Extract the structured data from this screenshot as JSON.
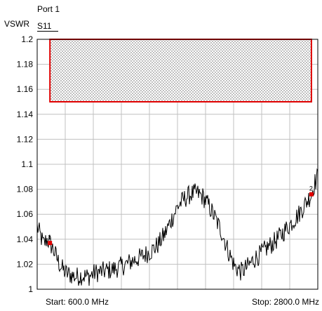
{
  "header": {
    "unit": "VSWR",
    "port": "Port 1",
    "trace": "S11"
  },
  "footer": {
    "start_label": "Start: 600.0 MHz",
    "stop_label": "Stop: 2800.0 MHz"
  },
  "colors": {
    "trace": "#000000",
    "limit": "#e00000",
    "marker": "#e00000",
    "grid": "#c0c0c0",
    "hatch_dot": "#606060"
  },
  "chart_data": {
    "type": "line",
    "xlim": [
      600,
      2800
    ],
    "ylim": [
      1.0,
      1.2
    ],
    "x_unit": "MHz",
    "y_ticks": [
      "1",
      "1.02",
      "1.04",
      "1.06",
      "1.08",
      "1.1",
      "1.12",
      "1.14",
      "1.16",
      "1.18",
      "1.2"
    ],
    "x_divisions": 10,
    "grid": true,
    "limit_region": {
      "x": [
        700,
        2750
      ],
      "y": [
        1.15,
        1.2
      ],
      "fill": "dotted"
    },
    "markers": [
      {
        "label": "1",
        "x": 700,
        "y": 1.037
      },
      {
        "label": "2",
        "x": 2750,
        "y": 1.076
      }
    ],
    "series": [
      {
        "points": [
          [
            600,
            1.05
          ],
          [
            625,
            1.043
          ],
          [
            650,
            1.036
          ],
          [
            675,
            1.04
          ],
          [
            700,
            1.037
          ],
          [
            725,
            1.032
          ],
          [
            750,
            1.026
          ],
          [
            775,
            1.02
          ],
          [
            800,
            1.016
          ],
          [
            825,
            1.013
          ],
          [
            850,
            1.012
          ],
          [
            900,
            1.01
          ],
          [
            950,
            1.011
          ],
          [
            1000,
            1.01
          ],
          [
            1050,
            1.013
          ],
          [
            1100,
            1.014
          ],
          [
            1150,
            1.015
          ],
          [
            1200,
            1.016
          ],
          [
            1250,
            1.018
          ],
          [
            1300,
            1.02
          ],
          [
            1350,
            1.023
          ],
          [
            1400,
            1.025
          ],
          [
            1450,
            1.028
          ],
          [
            1500,
            1.031
          ],
          [
            1550,
            1.036
          ],
          [
            1600,
            1.044
          ],
          [
            1650,
            1.055
          ],
          [
            1700,
            1.066
          ],
          [
            1750,
            1.072
          ],
          [
            1800,
            1.076
          ],
          [
            1850,
            1.077
          ],
          [
            1900,
            1.074
          ],
          [
            1950,
            1.066
          ],
          [
            2000,
            1.056
          ],
          [
            2050,
            1.045
          ],
          [
            2100,
            1.03
          ],
          [
            2150,
            1.018
          ],
          [
            2200,
            1.014
          ],
          [
            2250,
            1.018
          ],
          [
            2300,
            1.024
          ],
          [
            2350,
            1.028
          ],
          [
            2400,
            1.033
          ],
          [
            2450,
            1.037
          ],
          [
            2500,
            1.042
          ],
          [
            2550,
            1.048
          ],
          [
            2600,
            1.054
          ],
          [
            2650,
            1.06
          ],
          [
            2700,
            1.068
          ],
          [
            2750,
            1.076
          ],
          [
            2775,
            1.085
          ],
          [
            2800,
            1.09
          ]
        ]
      }
    ]
  }
}
